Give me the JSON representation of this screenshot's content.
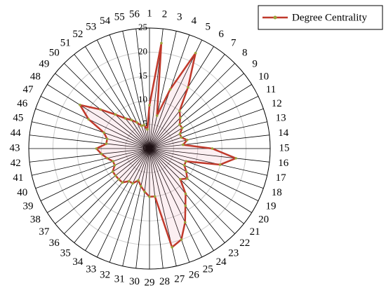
{
  "chart_data": {
    "type": "radar",
    "categories": [
      "1",
      "2",
      "3",
      "4",
      "5",
      "6",
      "7",
      "8",
      "9",
      "10",
      "11",
      "12",
      "13",
      "14",
      "15",
      "16",
      "17",
      "18",
      "19",
      "20",
      "21",
      "22",
      "23",
      "24",
      "25",
      "26",
      "27",
      "28",
      "29",
      "30",
      "31",
      "32",
      "33",
      "34",
      "35",
      "36",
      "37",
      "38",
      "39",
      "40",
      "41",
      "42",
      "43",
      "44",
      "45",
      "46",
      "47",
      "48",
      "49",
      "50",
      "51",
      "52",
      "53",
      "54",
      "55",
      "56"
    ],
    "series": [
      {
        "name": "Degree Centrality",
        "color": "#c0392b",
        "marker_color": "#9aa33a",
        "values": [
          9,
          22,
          7,
          13,
          22,
          15,
          10,
          9,
          8,
          8,
          7,
          7,
          8,
          7,
          13,
          18,
          15,
          8,
          8,
          9,
          10,
          9,
          12,
          14,
          17,
          20,
          21,
          10,
          10,
          9,
          8,
          7,
          8,
          8,
          9,
          9,
          9,
          9,
          8,
          8,
          9,
          10,
          11,
          9,
          9,
          10,
          14,
          17,
          13,
          10,
          8,
          7,
          6,
          5,
          5,
          4
        ]
      }
    ],
    "ylim": [
      0,
      25
    ],
    "yticks": [
      0,
      5,
      10,
      15,
      20,
      25
    ],
    "grid": true,
    "legend": "top-right"
  }
}
